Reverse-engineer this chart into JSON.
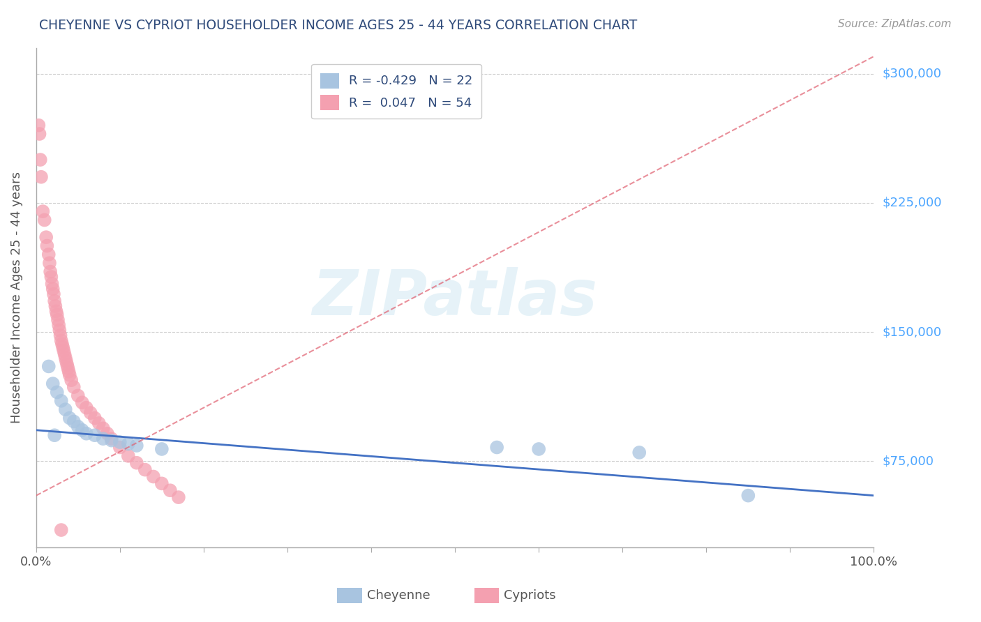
{
  "title": "CHEYENNE VS CYPRIOT HOUSEHOLDER INCOME AGES 25 - 44 YEARS CORRELATION CHART",
  "source_text": "Source: ZipAtlas.com",
  "ylabel": "Householder Income Ages 25 - 44 years",
  "xlim": [
    0.0,
    100.0
  ],
  "ylim": [
    25000,
    315000
  ],
  "yticks": [
    75000,
    150000,
    225000,
    300000
  ],
  "ytick_labels": [
    "$75,000",
    "$150,000",
    "$225,000",
    "$300,000"
  ],
  "xticks": [
    0.0,
    10.0,
    20.0,
    30.0,
    40.0,
    50.0,
    60.0,
    70.0,
    80.0,
    90.0,
    100.0
  ],
  "xtick_labels": [
    "0.0%",
    "",
    "",
    "",
    "",
    "",
    "",
    "",
    "",
    "",
    "100.0%"
  ],
  "cheyenne_color": "#a8c4e0",
  "cypriot_color": "#f4a0b0",
  "cheyenne_line_color": "#4472c4",
  "cypriot_line_color": "#e06070",
  "legend_r_cheyenne": "-0.429",
  "legend_n_cheyenne": "22",
  "legend_r_cypriot": "0.047",
  "legend_n_cypriot": "54",
  "watermark": "ZIPatlas",
  "cheyenne_x": [
    1.5,
    2.0,
    2.5,
    3.0,
    3.5,
    4.0,
    4.5,
    5.0,
    5.5,
    6.0,
    7.0,
    8.0,
    9.0,
    10.0,
    11.0,
    12.0,
    15.0,
    55.0,
    60.0,
    72.0,
    85.0,
    2.2
  ],
  "cheyenne_y": [
    130000,
    120000,
    115000,
    110000,
    105000,
    100000,
    98000,
    95000,
    93000,
    91000,
    90000,
    88000,
    87000,
    86000,
    85000,
    84000,
    82000,
    83000,
    82000,
    80000,
    55000,
    90000
  ],
  "cypriot_x": [
    0.3,
    0.4,
    0.5,
    0.6,
    0.8,
    1.0,
    1.2,
    1.3,
    1.5,
    1.6,
    1.7,
    1.8,
    1.9,
    2.0,
    2.1,
    2.2,
    2.3,
    2.4,
    2.5,
    2.6,
    2.7,
    2.8,
    2.9,
    3.0,
    3.1,
    3.2,
    3.3,
    3.4,
    3.5,
    3.6,
    3.7,
    3.8,
    3.9,
    4.0,
    4.2,
    4.5,
    5.0,
    5.5,
    6.0,
    6.5,
    7.0,
    7.5,
    8.0,
    8.5,
    9.0,
    10.0,
    11.0,
    12.0,
    13.0,
    14.0,
    15.0,
    16.0,
    17.0,
    3.0
  ],
  "cypriot_y": [
    270000,
    265000,
    250000,
    240000,
    220000,
    215000,
    205000,
    200000,
    195000,
    190000,
    185000,
    182000,
    178000,
    175000,
    172000,
    168000,
    165000,
    162000,
    160000,
    157000,
    154000,
    151000,
    148000,
    145000,
    143000,
    141000,
    139000,
    137000,
    135000,
    133000,
    131000,
    129000,
    127000,
    125000,
    122000,
    118000,
    113000,
    109000,
    106000,
    103000,
    100000,
    97000,
    94000,
    91000,
    88000,
    83000,
    78000,
    74000,
    70000,
    66000,
    62000,
    58000,
    54000,
    35000
  ],
  "cheyenne_trend_x0": 0.0,
  "cheyenne_trend_y0": 93000,
  "cheyenne_trend_x1": 100.0,
  "cheyenne_trend_y1": 55000,
  "cypriot_trend_x0": 0.0,
  "cypriot_trend_y0": 55000,
  "cypriot_trend_x1": 100.0,
  "cypriot_trend_y1": 310000
}
